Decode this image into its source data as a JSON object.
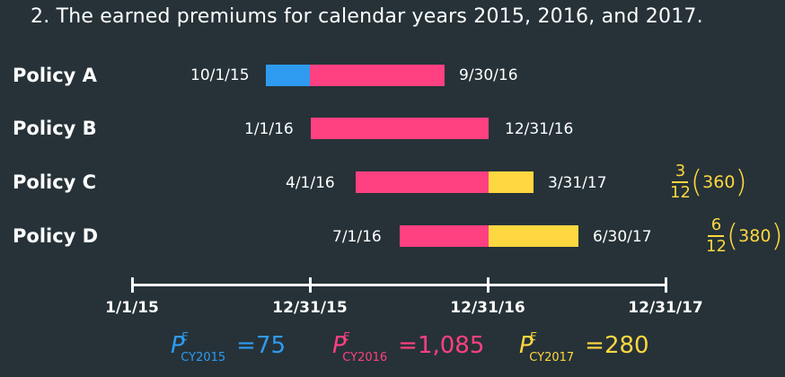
{
  "heading": "2. The earned premiums for calendar years 2015, 2016, and 2017.",
  "colors": {
    "cy2015": "#2f9bf0",
    "cy2016": "#ff4081",
    "cy2017": "#ffd740"
  },
  "policies": [
    {
      "label": "Policy A",
      "start": "10/1/15",
      "end": "9/30/16"
    },
    {
      "label": "Policy B",
      "start": "1/1/16",
      "end": "12/31/16"
    },
    {
      "label": "Policy C",
      "start": "4/1/16",
      "end": "3/31/17"
    },
    {
      "label": "Policy D",
      "start": "7/1/16",
      "end": "6/30/17"
    }
  ],
  "axis_ticks": [
    "1/1/15",
    "12/31/15",
    "12/31/16",
    "12/31/17"
  ],
  "fractions": [
    {
      "num": "3",
      "den": "12",
      "value": "360"
    },
    {
      "num": "6",
      "den": "12",
      "value": "380"
    }
  ],
  "premiums": [
    {
      "p": "P",
      "sup": "E",
      "sub": "CY2015",
      "eq": "=",
      "value": "75"
    },
    {
      "p": "P",
      "sup": "E",
      "sub": "CY2016",
      "eq": "=",
      "value": "1,085"
    },
    {
      "p": "P",
      "sup": "E",
      "sub": "CY2017",
      "eq": "=",
      "value": "280"
    }
  ]
}
